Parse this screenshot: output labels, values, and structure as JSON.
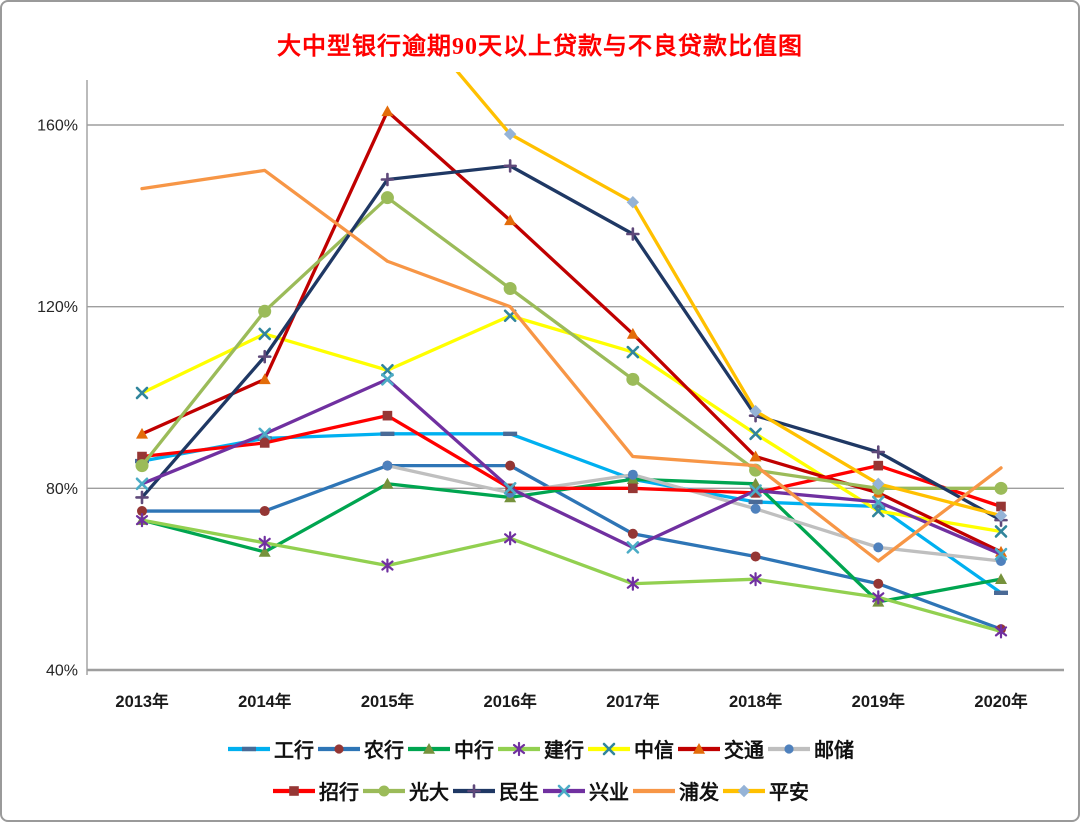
{
  "title": "大中型银行逾期90天以上贷款与不良贷款比值图",
  "chart_data": {
    "type": "line",
    "title": "大中型银行逾期90天以上贷款与不良贷款比值图",
    "title_color": "#ff0000",
    "categories": [
      "2013年",
      "2014年",
      "2015年",
      "2016年",
      "2017年",
      "2018年",
      "2019年",
      "2020年"
    ],
    "unit": "%",
    "y_axis": {
      "ticks": [
        160,
        120,
        80,
        40
      ],
      "tick_labels": [
        "160%",
        "120%",
        "80%",
        "40%"
      ],
      "min": 40,
      "max": 170
    },
    "grid": "horizontal",
    "legend_position": "bottom",
    "legend_rows": [
      7,
      6
    ],
    "series": [
      {
        "id": "icbc",
        "name": "工行",
        "line_color": "#00B0F0",
        "marker": "dash",
        "marker_color": "#4A6A96",
        "values": [
          86,
          91,
          92,
          92,
          82,
          77,
          76,
          57
        ]
      },
      {
        "id": "abc",
        "name": "农行",
        "line_color": "#2E75B6",
        "marker": "circle",
        "marker_color": "#943634",
        "values": [
          75,
          75,
          85,
          85,
          70,
          65,
          59,
          49
        ]
      },
      {
        "id": "boc",
        "name": "中行",
        "line_color": "#00A550",
        "marker": "triangle",
        "marker_color": "#76923C",
        "values": [
          73,
          66,
          81,
          78,
          82,
          81,
          55,
          60
        ]
      },
      {
        "id": "ccb",
        "name": "建行",
        "line_color": "#92D050",
        "marker": "asterisk",
        "marker_color": "#7030A0",
        "values": [
          73,
          68,
          63,
          69,
          59,
          60,
          56,
          48.5
        ]
      },
      {
        "id": "citic",
        "name": "中信",
        "line_color": "#FFFF00",
        "marker": "x",
        "marker_color": "#31859C",
        "values": [
          101,
          114,
          106,
          118,
          110,
          92,
          75,
          70.5
        ]
      },
      {
        "id": "bocom",
        "name": "交通",
        "line_color": "#C00000",
        "marker": "triangle",
        "marker_color": "#E36C0A",
        "values": [
          92,
          104,
          163,
          139,
          114,
          87,
          79,
          66
        ]
      },
      {
        "id": "psbc",
        "name": "邮储",
        "line_color": "#BFBFBF",
        "marker": "circle",
        "marker_color": "#4F81BD",
        "values": [
          null,
          null,
          85,
          79,
          83,
          75.5,
          67,
          64
        ]
      },
      {
        "id": "cmb",
        "name": "招行",
        "line_color": "#FF0000",
        "marker": "square",
        "marker_color": "#963634",
        "values": [
          87,
          90,
          96,
          80,
          80,
          79,
          85,
          76
        ]
      },
      {
        "id": "ceb",
        "name": "光大",
        "line_color": "#9BBB59",
        "marker": "circle",
        "marker_color": "#9BBB59",
        "marker_size": 6.5,
        "values": [
          85,
          119,
          144,
          124,
          104,
          84,
          80,
          80
        ]
      },
      {
        "id": "minsheng",
        "name": "民生",
        "line_color": "#1F3864",
        "marker": "plus",
        "marker_color": "#5F497A",
        "values": [
          78,
          109,
          148,
          151,
          136,
          96,
          88,
          73
        ]
      },
      {
        "id": "cib",
        "name": "兴业",
        "line_color": "#7030A0",
        "marker": "x",
        "marker_color": "#4BACC6",
        "values": [
          81,
          92,
          104,
          80,
          67,
          79.5,
          77,
          65.5
        ]
      },
      {
        "id": "spdb",
        "name": "浦发",
        "line_color": "#F79646",
        "marker": "none",
        "marker_color": "#F79646",
        "values": [
          146,
          150,
          130,
          120,
          87,
          85,
          64,
          84.5
        ]
      },
      {
        "id": "pingan",
        "name": "平安",
        "line_color": "#FFC000",
        "marker": "diamond",
        "marker_color": "#95B3D7",
        "values": [
          null,
          null,
          190,
          158,
          143,
          97,
          81,
          74
        ]
      }
    ]
  }
}
